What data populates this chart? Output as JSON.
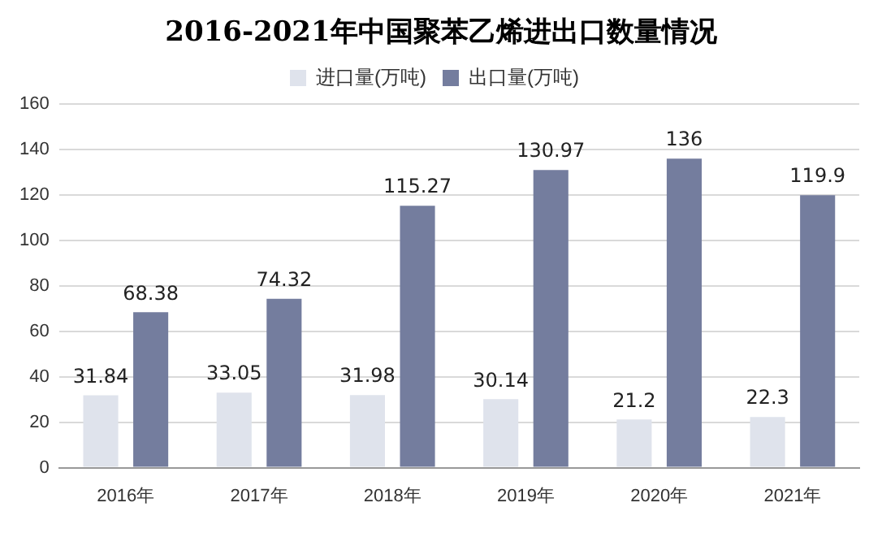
{
  "chart_data": {
    "type": "bar",
    "title": "2016-2021年中国聚苯乙烯进出口数量情况",
    "categories": [
      "2016年",
      "2017年",
      "2018年",
      "2019年",
      "2020年",
      "2021年"
    ],
    "series": [
      {
        "name": "进口量(万吨)",
        "color": "#dfe3ec",
        "values": [
          31.84,
          33.05,
          31.98,
          30.14,
          21.2,
          22.3
        ]
      },
      {
        "name": "出口量(万吨)",
        "color": "#747d9e",
        "values": [
          68.38,
          74.32,
          115.27,
          130.97,
          136,
          119.9
        ]
      }
    ],
    "ylim": [
      0,
      160
    ],
    "yticks": [
      0,
      20,
      40,
      60,
      80,
      100,
      120,
      140,
      160
    ],
    "grid": "y",
    "legend": "top",
    "data_labels": true
  }
}
